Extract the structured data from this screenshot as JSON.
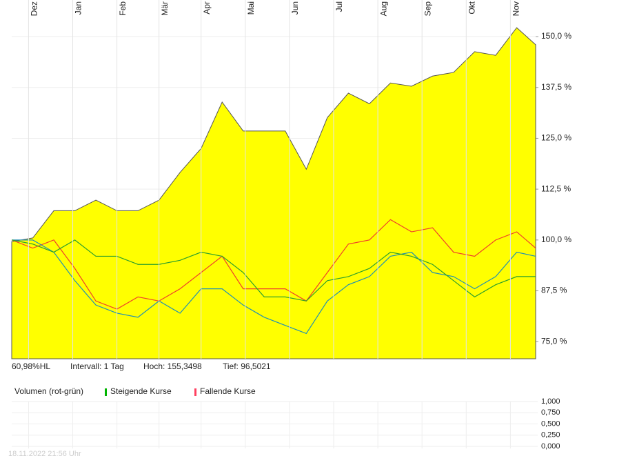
{
  "chart_data": [
    {
      "type": "line",
      "x": [
        0,
        10,
        20,
        30,
        40,
        50,
        60,
        70,
        80,
        90,
        100,
        110,
        120,
        130,
        140,
        150,
        160,
        170,
        180,
        190,
        200,
        210,
        220,
        230,
        240,
        249
      ],
      "xlim": [
        0,
        249
      ],
      "xticks": [
        {
          "value": 8,
          "label": "Dez"
        },
        {
          "value": 29,
          "label": "Jan"
        },
        {
          "value": 50,
          "label": "Feb"
        },
        {
          "value": 70,
          "label": "Mär"
        },
        {
          "value": 90,
          "label": "Apr"
        },
        {
          "value": 111,
          "label": "Mai"
        },
        {
          "value": 132,
          "label": "Jun"
        },
        {
          "value": 153,
          "label": "Jul"
        },
        {
          "value": 174,
          "label": "Aug"
        },
        {
          "value": 195,
          "label": "Sep"
        },
        {
          "value": 216,
          "label": "Okt"
        },
        {
          "value": 237,
          "label": "Nov"
        }
      ],
      "ylim": [
        70.8,
        159
      ],
      "yticks": [
        {
          "value": 150,
          "label": "150,0 %"
        },
        {
          "value": 137.5,
          "label": "137,5 %"
        },
        {
          "value": 125,
          "label": "125,0 %"
        },
        {
          "value": 112.5,
          "label": "112,5 %"
        },
        {
          "value": 100,
          "label": "100,0 %"
        },
        {
          "value": 87.5,
          "label": "87,5 %"
        },
        {
          "value": 75,
          "label": "75,0 %"
        }
      ],
      "grid": true,
      "series": [
        {
          "color": "#ffff00",
          "area": true,
          "values": [
            99.6,
            100.5,
            107.2,
            107.2,
            109.8,
            107.2,
            107.2,
            109.8,
            116.6,
            122.5,
            133.9,
            126.8,
            126.8,
            126.8,
            117.4,
            130.1,
            136.1,
            133.5,
            138.6,
            137.8,
            140.3,
            141.2,
            146.3,
            145.4,
            152.2,
            148.0
          ]
        },
        {
          "color": "#f0402a",
          "values": [
            100,
            98,
            100,
            93,
            85,
            83,
            86,
            85,
            88,
            92,
            96,
            88,
            88,
            88,
            85,
            92,
            99,
            100,
            105,
            102,
            103,
            97,
            96,
            100,
            102,
            98
          ]
        },
        {
          "color": "#1f8fb5",
          "values": [
            100,
            100,
            97,
            90,
            84,
            82,
            81,
            85,
            82,
            88,
            88,
            84,
            81,
            79,
            77,
            85,
            89,
            91,
            96,
            97,
            92,
            91,
            88,
            91,
            97,
            96
          ]
        },
        {
          "color": "#2ca02c",
          "values": [
            100,
            99,
            97,
            100,
            96,
            96,
            94,
            94,
            95,
            97,
            96,
            92,
            86,
            86,
            85,
            90,
            91,
            93,
            97,
            96,
            94,
            90,
            86,
            89,
            91,
            91
          ]
        }
      ],
      "annotations": [
        "60,98%HL",
        "Intervall: 1 Tag",
        "Hoch: 155,3498",
        "Tief: 96,5021"
      ]
    },
    {
      "type": "bar",
      "title": "Volumen (rot-grün)",
      "ylim": [
        0,
        1
      ],
      "yticks": [
        {
          "value": 1,
          "label": "1,000"
        },
        {
          "value": 0.75,
          "label": "0,750"
        },
        {
          "value": 0.5,
          "label": "0,500"
        },
        {
          "value": 0.25,
          "label": "0,250"
        },
        {
          "value": 0,
          "label": "0,000"
        }
      ],
      "grid": true,
      "series": [
        {
          "name": "Steigende Kurse",
          "color": "#00b400",
          "values": []
        },
        {
          "name": "Fallende Kurse",
          "color": "#ff4060",
          "values": []
        }
      ]
    }
  ],
  "footer": "18.11.2022 21:56 Uhr"
}
